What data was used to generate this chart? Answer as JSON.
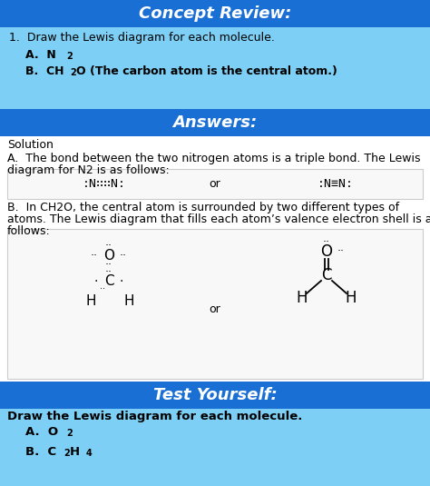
{
  "bg_outer": "#5bc8f5",
  "light_blue": "#7dcff5",
  "dark_blue": "#1a6fd4",
  "white": "#ffffff",
  "box_bg": "#f8f8f8",
  "box_edge": "#cccccc",
  "title1": "Concept Review:",
  "title2": "Answers:",
  "title3": "Test Yourself:",
  "concept_q": "1.  Draw the Lewis diagram for each molecule.",
  "concept_A_pre": "A.  N",
  "concept_A_sub": "2",
  "concept_B_pre": "B.  CH",
  "concept_B_sub": "2",
  "concept_B_post": "O (The carbon atom is the central atom.)",
  "solution": "Solution",
  "para_A1": "A.  The bond between the two nitrogen atoms is a triple bond. The Lewis",
  "para_A2": "diagram for N2 is as follows:",
  "n2_dots": ":N∷∷N:",
  "n2_lines": ":N≡N:",
  "para_B1": "B.  In CH2O, the central atom is surrounded by two different types of",
  "para_B2": "atoms. The Lewis diagram that fills each atom’s valence electron shell is as",
  "para_B3": "follows:",
  "test_intro": "Draw the Lewis diagram for each molecule.",
  "test_A_pre": "A.  O",
  "test_A_sub": "2",
  "test_B_pre": "B.  C",
  "test_B_sub1": "2",
  "test_B_mid": "H",
  "test_B_sub2": "4"
}
